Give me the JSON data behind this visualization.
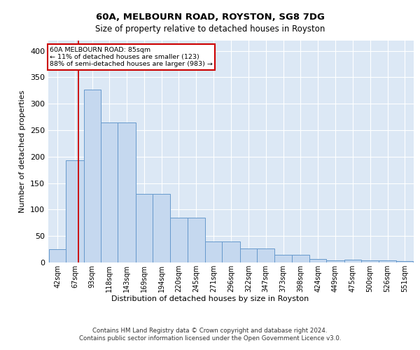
{
  "title1": "60A, MELBOURN ROAD, ROYSTON, SG8 7DG",
  "title2": "Size of property relative to detached houses in Royston",
  "xlabel": "Distribution of detached houses by size in Royston",
  "ylabel": "Number of detached properties",
  "bin_labels": [
    "42sqm",
    "67sqm",
    "93sqm",
    "118sqm",
    "143sqm",
    "169sqm",
    "194sqm",
    "220sqm",
    "245sqm",
    "271sqm",
    "296sqm",
    "322sqm",
    "347sqm",
    "373sqm",
    "398sqm",
    "424sqm",
    "449sqm",
    "475sqm",
    "500sqm",
    "526sqm",
    "551sqm"
  ],
  "heights": [
    25,
    193,
    327,
    265,
    265,
    130,
    130,
    85,
    85,
    40,
    40,
    26,
    26,
    15,
    15,
    7,
    4,
    5,
    4,
    4,
    3
  ],
  "bar_color": "#c5d8ef",
  "bar_edge_color": "#6699cc",
  "vline_x_index": 1,
  "vline_color": "#cc0000",
  "annotation_box_text": "60A MELBOURN ROAD: 85sqm\n← 11% of detached houses are smaller (123)\n88% of semi-detached houses are larger (983) →",
  "annotation_box_color": "#ffffff",
  "annotation_box_edge": "#cc0000",
  "ylim": [
    0,
    420
  ],
  "yticks": [
    0,
    50,
    100,
    150,
    200,
    250,
    300,
    350,
    400
  ],
  "background_color": "#dce8f5",
  "footer_text": "Contains HM Land Registry data © Crown copyright and database right 2024.\nContains public sector information licensed under the Open Government Licence v3.0.",
  "bin_edges": [
    42,
    67,
    93,
    118,
    143,
    169,
    194,
    220,
    245,
    271,
    296,
    322,
    347,
    373,
    398,
    424,
    449,
    475,
    500,
    526,
    551,
    576
  ]
}
